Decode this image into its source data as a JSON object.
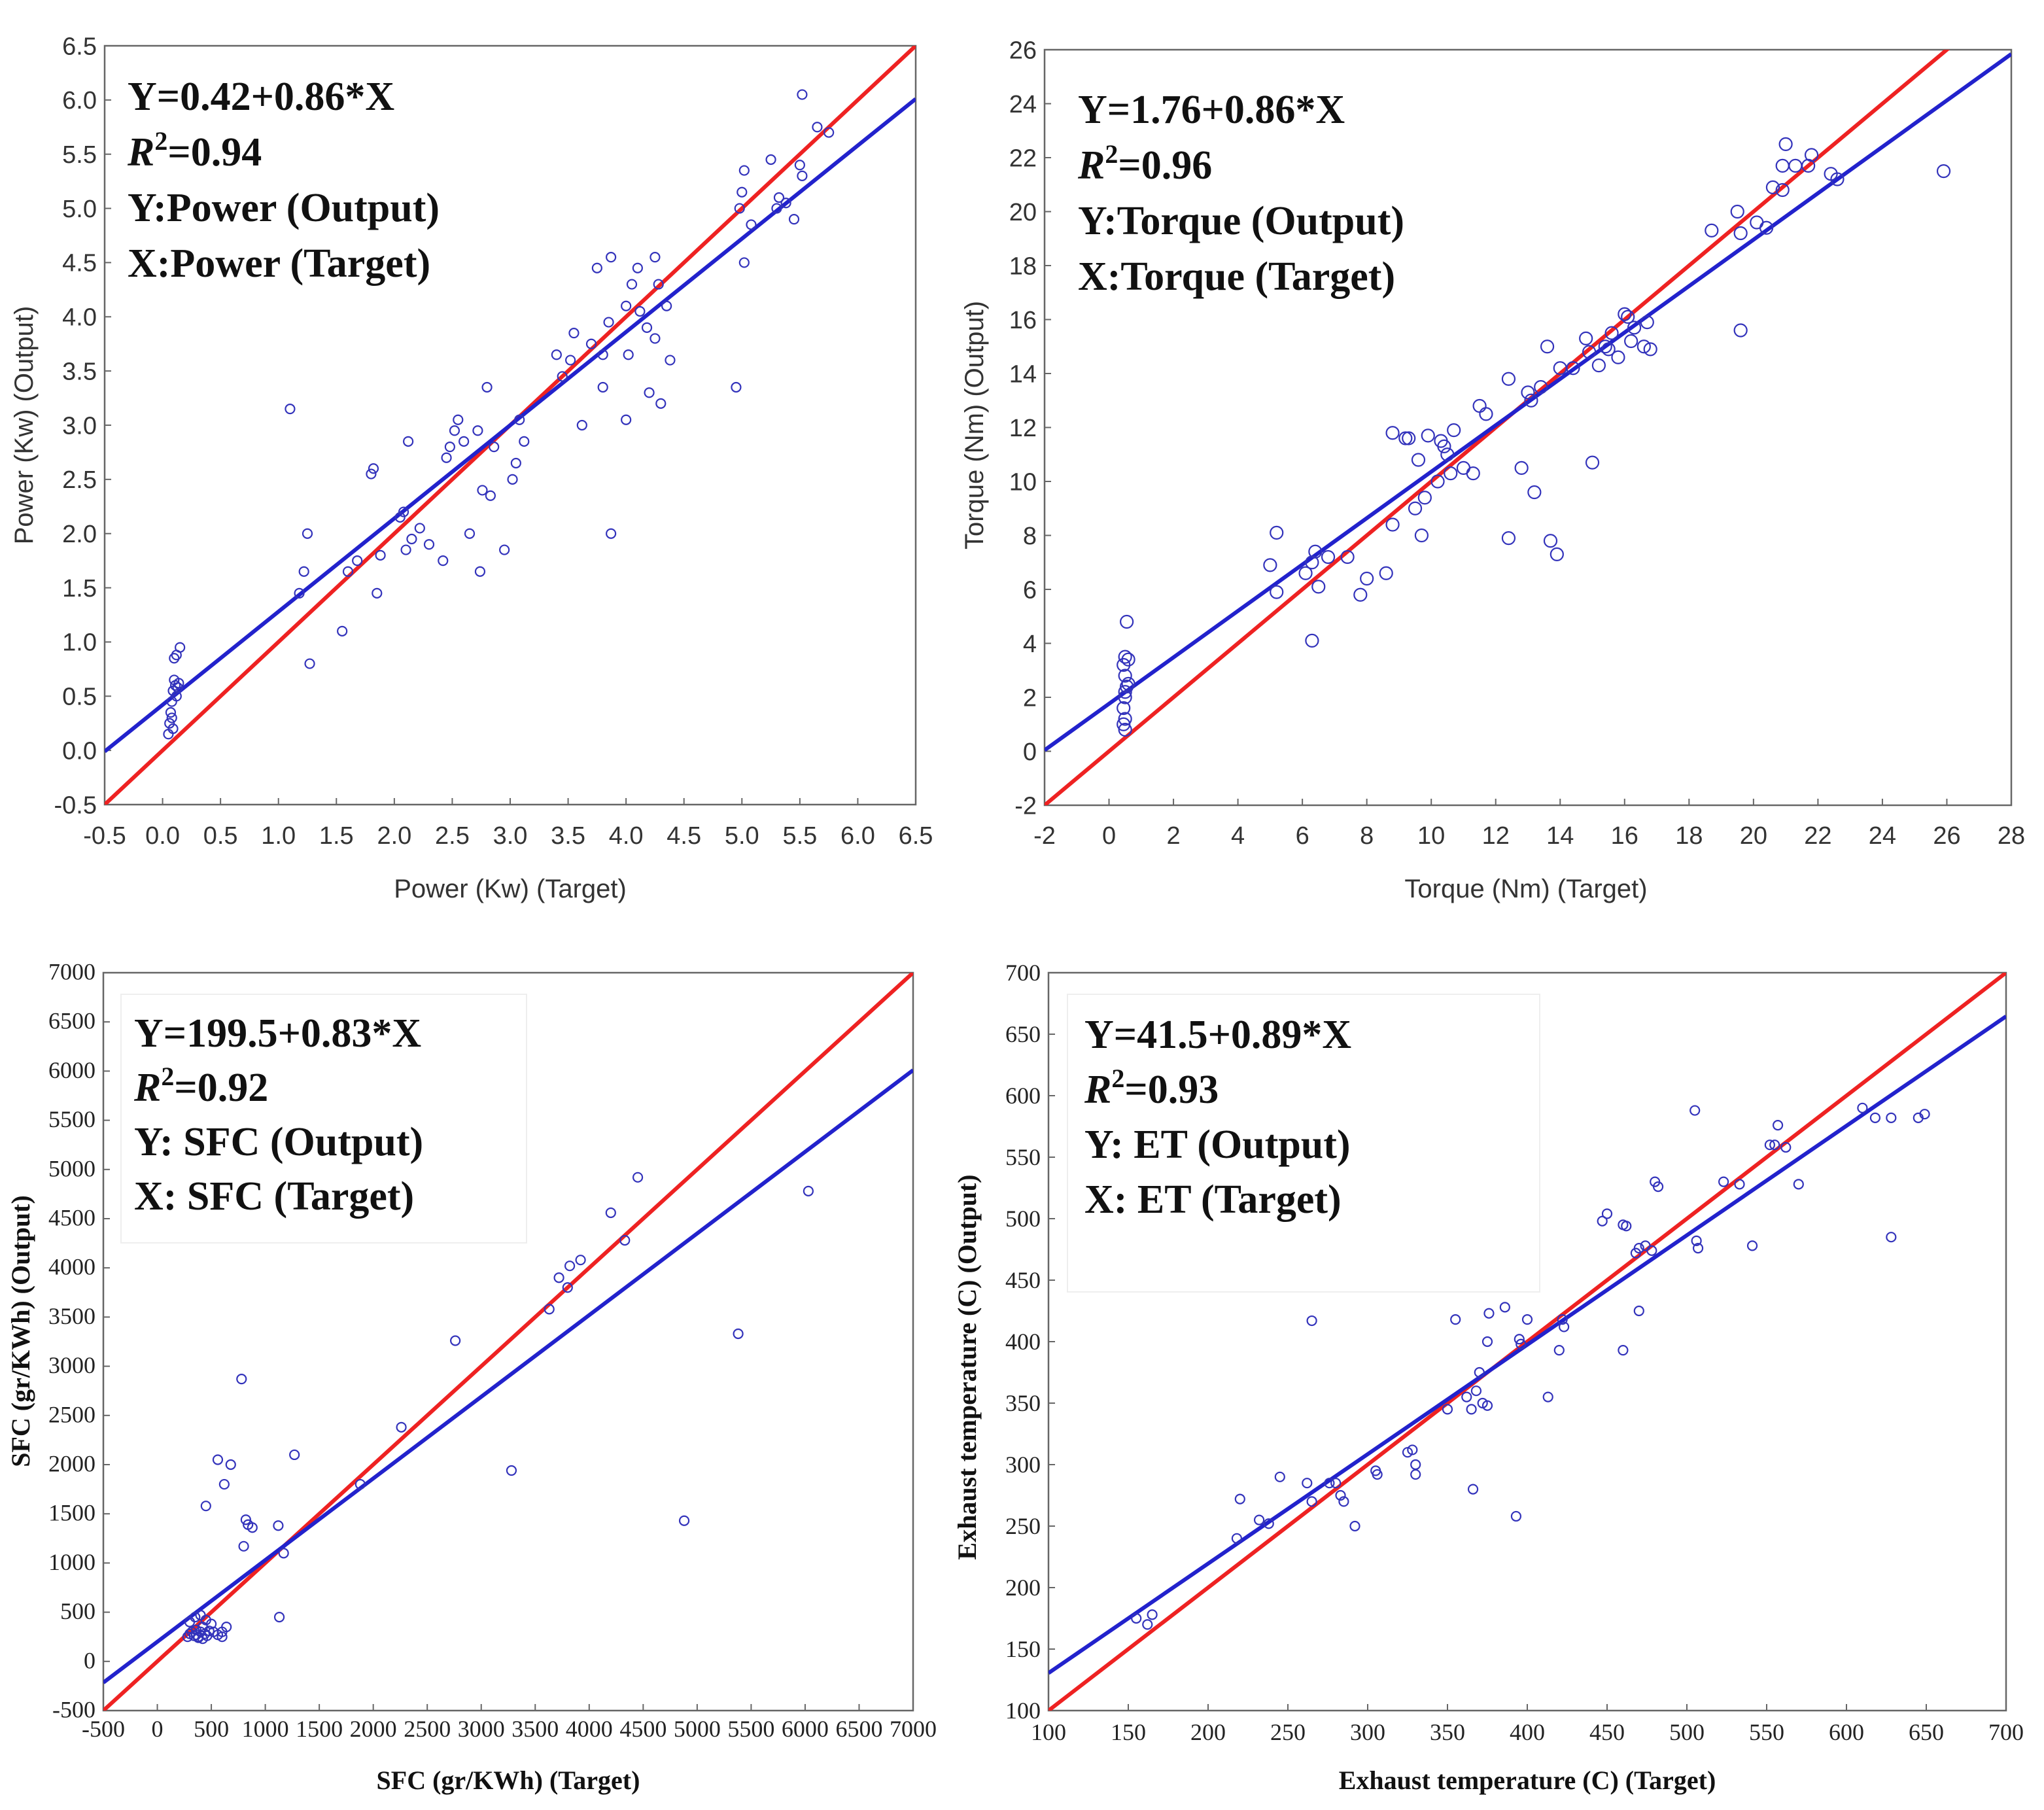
{
  "chart_data": [
    {
      "type": "scatter",
      "font": "sans",
      "xlabel": "Power (Kw) (Target)",
      "ylabel": "Power (Kw) (Output)",
      "xlim": [
        -0.5,
        6.5
      ],
      "ylim": [
        -0.5,
        6.5
      ],
      "xticks": [
        -0.5,
        0.0,
        0.5,
        1.0,
        1.5,
        2.0,
        2.5,
        3.0,
        3.5,
        4.0,
        4.5,
        5.0,
        5.5,
        6.0,
        6.5
      ],
      "yticks": [
        -0.5,
        0.0,
        0.5,
        1.0,
        1.5,
        2.0,
        2.5,
        3.0,
        3.5,
        4.0,
        4.5,
        5.0,
        5.5,
        6.0,
        6.5
      ],
      "tick_format": 1,
      "annotation": [
        "Y=0.42+0.86*X",
        "R²=0.94",
        "Y:Power (Output)",
        "X:Power (Target)"
      ],
      "fit_line": {
        "intercept": 0.42,
        "slope": 0.86,
        "color": "#2222cc"
      },
      "identity_line": {
        "color": "#ee2222"
      },
      "point_color": "#3333bb",
      "points": [
        [
          0.05,
          0.15
        ],
        [
          0.06,
          0.25
        ],
        [
          0.07,
          0.35
        ],
        [
          0.08,
          0.45
        ],
        [
          0.09,
          0.55
        ],
        [
          0.1,
          0.65
        ],
        [
          0.11,
          0.6
        ],
        [
          0.12,
          0.5
        ],
        [
          0.13,
          0.58
        ],
        [
          0.14,
          0.62
        ],
        [
          0.1,
          0.85
        ],
        [
          0.12,
          0.88
        ],
        [
          0.15,
          0.95
        ],
        [
          0.08,
          0.3
        ],
        [
          0.09,
          0.2
        ],
        [
          1.1,
          3.15
        ],
        [
          1.18,
          1.45
        ],
        [
          1.22,
          1.65
        ],
        [
          1.25,
          2.0
        ],
        [
          1.27,
          0.8
        ],
        [
          1.55,
          1.1
        ],
        [
          1.6,
          1.65
        ],
        [
          1.68,
          1.75
        ],
        [
          1.8,
          2.55
        ],
        [
          1.82,
          2.6
        ],
        [
          1.85,
          1.45
        ],
        [
          1.88,
          1.8
        ],
        [
          2.05,
          2.15
        ],
        [
          2.08,
          2.2
        ],
        [
          2.1,
          1.85
        ],
        [
          2.12,
          2.85
        ],
        [
          2.15,
          1.95
        ],
        [
          2.22,
          2.05
        ],
        [
          2.3,
          1.9
        ],
        [
          2.42,
          1.75
        ],
        [
          2.45,
          2.7
        ],
        [
          2.48,
          2.8
        ],
        [
          2.52,
          2.95
        ],
        [
          2.55,
          3.05
        ],
        [
          2.6,
          2.85
        ],
        [
          2.65,
          2.0
        ],
        [
          2.72,
          2.95
        ],
        [
          2.74,
          1.65
        ],
        [
          2.76,
          2.4
        ],
        [
          2.8,
          3.35
        ],
        [
          2.83,
          2.35
        ],
        [
          2.86,
          2.8
        ],
        [
          2.95,
          1.85
        ],
        [
          3.02,
          2.5
        ],
        [
          3.05,
          2.65
        ],
        [
          3.08,
          3.05
        ],
        [
          3.12,
          2.85
        ],
        [
          3.4,
          3.65
        ],
        [
          3.45,
          3.45
        ],
        [
          3.52,
          3.6
        ],
        [
          3.55,
          3.85
        ],
        [
          3.62,
          3.0
        ],
        [
          3.7,
          3.75
        ],
        [
          3.75,
          4.45
        ],
        [
          3.8,
          3.65
        ],
        [
          3.8,
          3.35
        ],
        [
          3.85,
          3.95
        ],
        [
          3.87,
          4.55
        ],
        [
          3.87,
          2.0
        ],
        [
          4.0,
          4.1
        ],
        [
          4.05,
          4.3
        ],
        [
          4.0,
          3.05
        ],
        [
          4.02,
          3.65
        ],
        [
          4.1,
          4.45
        ],
        [
          4.12,
          4.05
        ],
        [
          4.18,
          3.9
        ],
        [
          4.2,
          3.3
        ],
        [
          4.25,
          3.8
        ],
        [
          4.25,
          4.55
        ],
        [
          4.28,
          4.3
        ],
        [
          4.3,
          3.2
        ],
        [
          4.35,
          4.1
        ],
        [
          4.38,
          3.6
        ],
        [
          4.95,
          3.35
        ],
        [
          4.98,
          5.0
        ],
        [
          5.0,
          5.15
        ],
        [
          5.02,
          4.5
        ],
        [
          5.02,
          5.35
        ],
        [
          5.08,
          4.85
        ],
        [
          5.25,
          5.45
        ],
        [
          5.3,
          5.0
        ],
        [
          5.32,
          5.1
        ],
        [
          5.38,
          5.05
        ],
        [
          5.45,
          4.9
        ],
        [
          5.5,
          5.4
        ],
        [
          5.52,
          5.3
        ],
        [
          5.52,
          6.05
        ],
        [
          5.65,
          5.75
        ],
        [
          5.75,
          5.7
        ]
      ]
    },
    {
      "type": "scatter",
      "font": "sans",
      "xlabel": "Torque (Nm) (Target)",
      "ylabel": "Torque (Nm) (Output)",
      "xlim": [
        -2,
        28
      ],
      "ylim": [
        -2,
        26
      ],
      "xticks": [
        -2,
        0,
        2,
        4,
        6,
        8,
        10,
        12,
        14,
        16,
        18,
        20,
        22,
        24,
        26,
        28
      ],
      "yticks": [
        -2,
        0,
        2,
        4,
        6,
        8,
        10,
        12,
        14,
        16,
        18,
        20,
        22,
        24,
        26
      ],
      "tick_format": 0,
      "annotation": [
        "Y=1.76+0.86*X",
        "R²=0.96",
        "Y:Torque (Output)",
        "X:Torque (Target)"
      ],
      "fit_line": {
        "intercept": 1.76,
        "slope": 0.86,
        "color": "#2222cc"
      },
      "identity_line": {
        "color": "#ee2222"
      },
      "point_color": "#3333bb",
      "points": [
        [
          0.5,
          0.8
        ],
        [
          0.5,
          1.2
        ],
        [
          0.45,
          1.6
        ],
        [
          0.5,
          2.0
        ],
        [
          0.55,
          2.4
        ],
        [
          0.5,
          2.8
        ],
        [
          0.45,
          3.2
        ],
        [
          0.5,
          3.5
        ],
        [
          0.6,
          3.4
        ],
        [
          0.55,
          4.8
        ],
        [
          0.5,
          2.2
        ],
        [
          0.45,
          1.0
        ],
        [
          0.6,
          2.5
        ],
        [
          5.0,
          6.9
        ],
        [
          5.2,
          8.1
        ],
        [
          5.2,
          5.9
        ],
        [
          6.1,
          6.6
        ],
        [
          6.3,
          7.0
        ],
        [
          6.4,
          7.4
        ],
        [
          6.5,
          6.1
        ],
        [
          6.3,
          4.1
        ],
        [
          6.8,
          7.2
        ],
        [
          7.4,
          7.2
        ],
        [
          7.8,
          5.8
        ],
        [
          8.0,
          6.4
        ],
        [
          8.6,
          6.6
        ],
        [
          8.8,
          8.4
        ],
        [
          8.8,
          11.8
        ],
        [
          9.2,
          11.6
        ],
        [
          9.3,
          11.6
        ],
        [
          9.5,
          9.0
        ],
        [
          9.6,
          10.8
        ],
        [
          9.7,
          8.0
        ],
        [
          9.8,
          9.4
        ],
        [
          9.9,
          11.7
        ],
        [
          10.2,
          10.0
        ],
        [
          10.3,
          11.5
        ],
        [
          10.4,
          11.3
        ],
        [
          10.5,
          11.0
        ],
        [
          10.6,
          10.3
        ],
        [
          10.7,
          11.9
        ],
        [
          11.0,
          10.5
        ],
        [
          11.3,
          10.3
        ],
        [
          11.5,
          12.8
        ],
        [
          11.7,
          12.5
        ],
        [
          12.4,
          13.8
        ],
        [
          12.4,
          7.9
        ],
        [
          12.8,
          10.5
        ],
        [
          13.0,
          13.3
        ],
        [
          13.1,
          13.0
        ],
        [
          13.2,
          9.6
        ],
        [
          13.4,
          13.5
        ],
        [
          13.6,
          15.0
        ],
        [
          13.7,
          7.8
        ],
        [
          13.9,
          7.3
        ],
        [
          14.0,
          14.2
        ],
        [
          14.4,
          14.2
        ],
        [
          14.8,
          15.3
        ],
        [
          14.9,
          14.8
        ],
        [
          15.0,
          10.7
        ],
        [
          15.2,
          14.3
        ],
        [
          15.4,
          15.0
        ],
        [
          15.5,
          14.9
        ],
        [
          15.6,
          15.5
        ],
        [
          15.8,
          14.6
        ],
        [
          16.0,
          16.2
        ],
        [
          16.1,
          16.1
        ],
        [
          16.2,
          15.2
        ],
        [
          16.3,
          15.7
        ],
        [
          16.6,
          15.0
        ],
        [
          16.7,
          15.9
        ],
        [
          16.8,
          14.9
        ],
        [
          18.7,
          19.3
        ],
        [
          19.5,
          20.0
        ],
        [
          19.6,
          19.2
        ],
        [
          19.6,
          15.6
        ],
        [
          20.1,
          19.6
        ],
        [
          20.4,
          19.4
        ],
        [
          20.6,
          20.9
        ],
        [
          20.9,
          20.8
        ],
        [
          20.9,
          21.7
        ],
        [
          21.0,
          22.5
        ],
        [
          21.3,
          21.7
        ],
        [
          21.7,
          21.7
        ],
        [
          21.8,
          22.1
        ],
        [
          22.4,
          21.4
        ],
        [
          22.6,
          21.2
        ],
        [
          25.9,
          21.5
        ]
      ]
    },
    {
      "type": "scatter",
      "font": "serif",
      "xlabel": "SFC (gr/KWh) (Target)",
      "ylabel": "SFC (gr/KWh) (Output)",
      "xlim": [
        -500,
        7000
      ],
      "ylim": [
        -500,
        7000
      ],
      "xticks": [
        -500,
        0,
        500,
        1000,
        1500,
        2000,
        2500,
        3000,
        3500,
        4000,
        4500,
        5000,
        5500,
        6000,
        6500,
        7000
      ],
      "yticks": [
        -500,
        0,
        500,
        1000,
        1500,
        2000,
        2500,
        3000,
        3500,
        4000,
        4500,
        5000,
        5500,
        6000,
        6500,
        7000
      ],
      "tick_format": 0,
      "annotation": [
        "Y=199.5+0.83*X",
        "R²=0.92",
        "Y: SFC (Output)",
        "X: SFC (Target)"
      ],
      "fit_line": {
        "intercept": 199.5,
        "slope": 0.83,
        "color": "#2222cc"
      },
      "identity_line": {
        "color": "#ee2222"
      },
      "point_color": "#3333bb",
      "points": [
        [
          280,
          250
        ],
        [
          300,
          280
        ],
        [
          320,
          300
        ],
        [
          340,
          260
        ],
        [
          360,
          320
        ],
        [
          380,
          240
        ],
        [
          400,
          300
        ],
        [
          420,
          350
        ],
        [
          440,
          280
        ],
        [
          460,
          260
        ],
        [
          480,
          310
        ],
        [
          500,
          380
        ],
        [
          520,
          300
        ],
        [
          350,
          450
        ],
        [
          400,
          470
        ],
        [
          450,
          420
        ],
        [
          300,
          400
        ],
        [
          380,
          250
        ],
        [
          420,
          230
        ],
        [
          360,
          270
        ],
        [
          560,
          270
        ],
        [
          600,
          300
        ],
        [
          640,
          350
        ],
        [
          600,
          250
        ],
        [
          450,
          1580
        ],
        [
          560,
          2050
        ],
        [
          620,
          1800
        ],
        [
          680,
          2000
        ],
        [
          780,
          2870
        ],
        [
          800,
          1170
        ],
        [
          820,
          1440
        ],
        [
          840,
          1390
        ],
        [
          880,
          1360
        ],
        [
          1120,
          1380
        ],
        [
          1130,
          450
        ],
        [
          1170,
          1100
        ],
        [
          1270,
          2100
        ],
        [
          1880,
          1800
        ],
        [
          2260,
          2380
        ],
        [
          2760,
          3260
        ],
        [
          3280,
          1940
        ],
        [
          3630,
          3580
        ],
        [
          3720,
          3900
        ],
        [
          3800,
          3800
        ],
        [
          3820,
          4020
        ],
        [
          3920,
          4080
        ],
        [
          4200,
          4560
        ],
        [
          4330,
          4280
        ],
        [
          4450,
          4920
        ],
        [
          4880,
          1430
        ],
        [
          5380,
          3330
        ],
        [
          6030,
          4780
        ]
      ]
    },
    {
      "type": "scatter",
      "font": "serif",
      "xlabel": "Exhaust temperature (C) (Target)",
      "ylabel": "Exhaust temperature (C) (Output)",
      "xlim": [
        100,
        700
      ],
      "ylim": [
        100,
        700
      ],
      "xticks": [
        100,
        150,
        200,
        250,
        300,
        350,
        400,
        450,
        500,
        550,
        600,
        650,
        700
      ],
      "yticks": [
        100,
        150,
        200,
        250,
        300,
        350,
        400,
        450,
        500,
        550,
        600,
        650,
        700
      ],
      "tick_format": 0,
      "annotation": [
        "Y=41.5+0.89*X",
        "R²=0.93",
        "Y: ET (Output)",
        "X: ET (Target)"
      ],
      "fit_line": {
        "intercept": 41.5,
        "slope": 0.89,
        "color": "#2222cc"
      },
      "identity_line": {
        "color": "#ee2222"
      },
      "point_color": "#3333bb",
      "points": [
        [
          155,
          175
        ],
        [
          162,
          170
        ],
        [
          165,
          178
        ],
        [
          218,
          240
        ],
        [
          220,
          272
        ],
        [
          232,
          255
        ],
        [
          238,
          252
        ],
        [
          245,
          290
        ],
        [
          262,
          285
        ],
        [
          265,
          270
        ],
        [
          265,
          417
        ],
        [
          276,
          285
        ],
        [
          280,
          285
        ],
        [
          283,
          275
        ],
        [
          285,
          270
        ],
        [
          292,
          250
        ],
        [
          305,
          295
        ],
        [
          306,
          292
        ],
        [
          325,
          310
        ],
        [
          328,
          312
        ],
        [
          330,
          300
        ],
        [
          330,
          292
        ],
        [
          350,
          345
        ],
        [
          355,
          418
        ],
        [
          362,
          355
        ],
        [
          365,
          345
        ],
        [
          366,
          280
        ],
        [
          368,
          360
        ],
        [
          370,
          375
        ],
        [
          372,
          350
        ],
        [
          375,
          348
        ],
        [
          375,
          400
        ],
        [
          376,
          423
        ],
        [
          386,
          428
        ],
        [
          393,
          258
        ],
        [
          395,
          402
        ],
        [
          396,
          398
        ],
        [
          400,
          418
        ],
        [
          413,
          355
        ],
        [
          420,
          393
        ],
        [
          422,
          418
        ],
        [
          423,
          412
        ],
        [
          447,
          498
        ],
        [
          450,
          504
        ],
        [
          460,
          393
        ],
        [
          460,
          495
        ],
        [
          462,
          494
        ],
        [
          468,
          472
        ],
        [
          470,
          425
        ],
        [
          470,
          476
        ],
        [
          474,
          478
        ],
        [
          478,
          474
        ],
        [
          480,
          530
        ],
        [
          482,
          526
        ],
        [
          505,
          588
        ],
        [
          506,
          482
        ],
        [
          507,
          476
        ],
        [
          523,
          530
        ],
        [
          533,
          528
        ],
        [
          541,
          478
        ],
        [
          552,
          560
        ],
        [
          555,
          560
        ],
        [
          557,
          576
        ],
        [
          562,
          558
        ],
        [
          570,
          528
        ],
        [
          610,
          590
        ],
        [
          618,
          582
        ],
        [
          628,
          485
        ],
        [
          628,
          582
        ],
        [
          645,
          582
        ],
        [
          649,
          585
        ]
      ]
    }
  ]
}
